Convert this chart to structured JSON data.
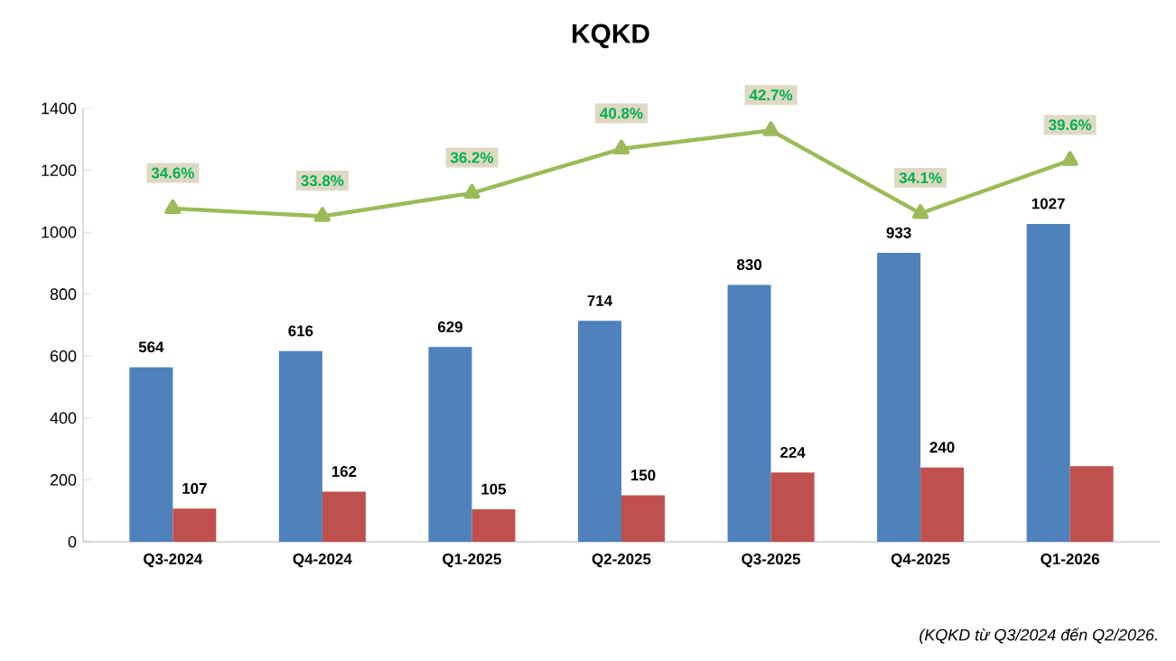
{
  "chart_data": {
    "type": "bar",
    "title": "KQKD",
    "categories": [
      "Q3-2024",
      "Q4-2024",
      "Q1-2025",
      "Q2-2025",
      "Q3-2025",
      "Q4-2025",
      "Q1-2026"
    ],
    "series": [
      {
        "color": "#4f81bd",
        "values": [
          564,
          616,
          629,
          714,
          830,
          933,
          1027
        ],
        "value_labels": [
          "564",
          "616",
          "629",
          "714",
          "830",
          "933",
          "1027"
        ]
      },
      {
        "color": "#c0504d",
        "values": [
          107,
          162,
          105,
          150,
          224,
          240,
          244
        ],
        "value_labels": [
          "107",
          "162",
          "105",
          "150",
          "224",
          "240",
          null
        ]
      },
      {
        "type": "line",
        "axis": "y2",
        "color": "#9bbb59",
        "values": [
          34.6,
          33.8,
          36.2,
          40.8,
          42.7,
          34.1,
          39.6
        ],
        "value_labels": [
          "34.6%",
          "33.8%",
          "36.2%",
          "40.8%",
          "42.7%",
          "34.1%",
          "39.6%"
        ]
      }
    ],
    "ylim": [
      0,
      1400
    ],
    "yticks": [
      0,
      200,
      400,
      600,
      800,
      1000,
      1200,
      1400
    ],
    "y2lim": [
      0,
      45
    ],
    "marker": "triangle",
    "annotations": [
      "(KQKD từ Q3/2024 đến Q2/2026."
    ]
  }
}
